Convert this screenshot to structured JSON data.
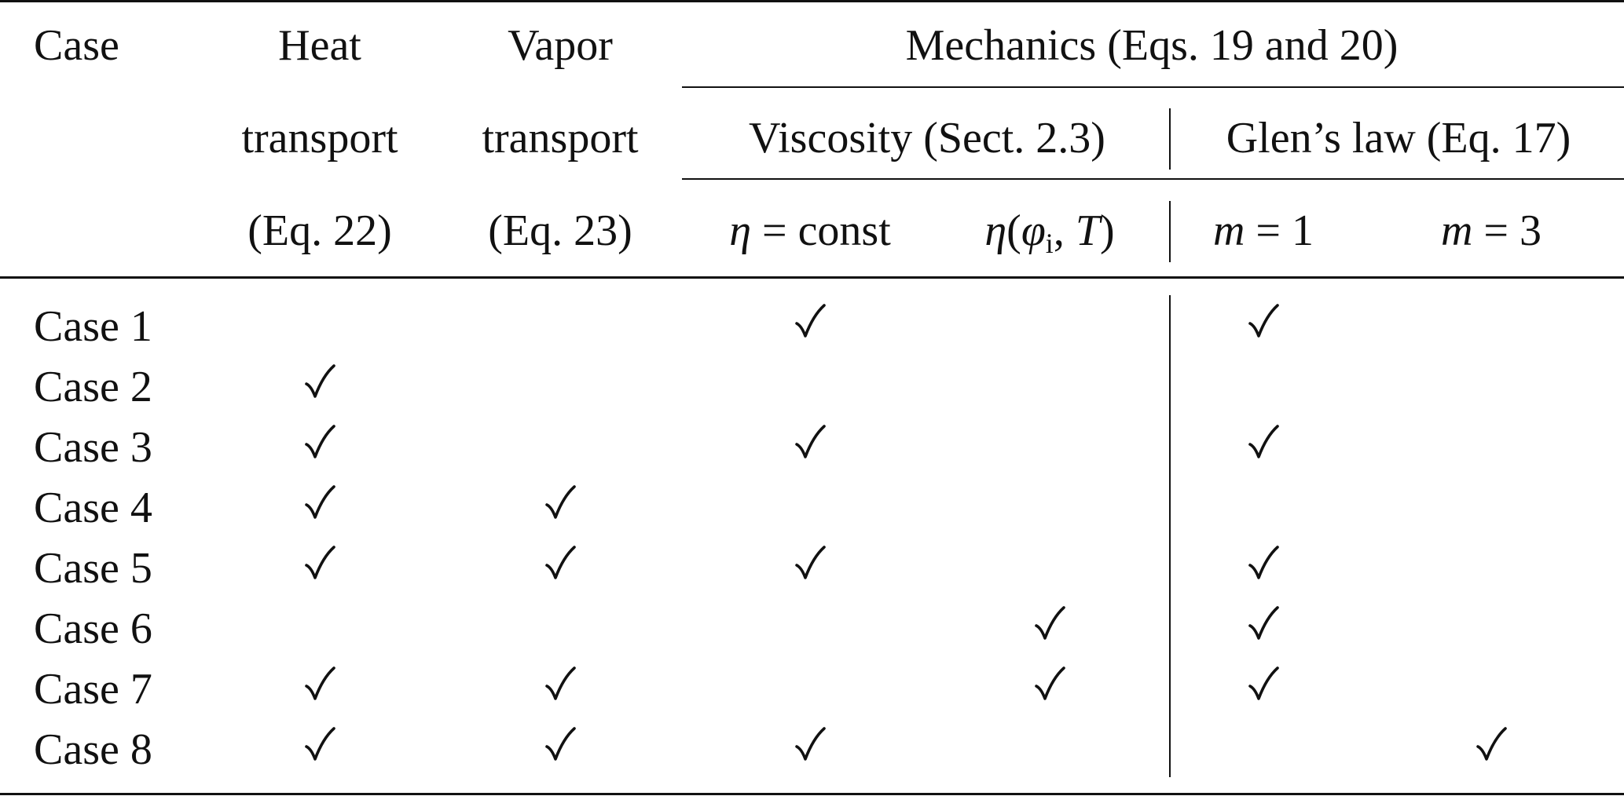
{
  "table": {
    "header": {
      "case_label": "Case",
      "heat": [
        "Heat",
        "transport",
        "(Eq. 22)"
      ],
      "vapor": [
        "Vapor",
        "transport",
        "(Eq. 23)"
      ],
      "mechanics": "Mechanics (Eqs. 19 and 20)",
      "viscosity": "Viscosity (Sect. 2.3)",
      "glen": "Glen’s law (Eq. 17)",
      "eta_const": {
        "sym": "η",
        "eq": " = ",
        "val": "const"
      },
      "eta_fn": {
        "sym": "η",
        "open": "(",
        "phi": "φ",
        "sub": "i",
        "sep": ", ",
        "T": "T",
        "close": ")"
      },
      "m1": {
        "sym": "m",
        "eq": " = ",
        "val": "1"
      },
      "m3": {
        "sym": "m",
        "eq": " = ",
        "val": "3"
      }
    },
    "columns": [
      "heat_transport",
      "vapor_transport",
      "eta_const",
      "eta_phi_T",
      "m_1",
      "m_3"
    ],
    "rows": [
      {
        "case": "Case 1",
        "checks": [
          false,
          false,
          true,
          false,
          true,
          false
        ]
      },
      {
        "case": "Case 2",
        "checks": [
          true,
          false,
          false,
          false,
          false,
          false
        ]
      },
      {
        "case": "Case 3",
        "checks": [
          true,
          false,
          true,
          false,
          true,
          false
        ]
      },
      {
        "case": "Case 4",
        "checks": [
          true,
          true,
          false,
          false,
          false,
          false
        ]
      },
      {
        "case": "Case 5",
        "checks": [
          true,
          true,
          true,
          false,
          true,
          false
        ]
      },
      {
        "case": "Case 6",
        "checks": [
          false,
          false,
          false,
          true,
          true,
          false
        ]
      },
      {
        "case": "Case 7",
        "checks": [
          true,
          true,
          false,
          true,
          true,
          false
        ]
      },
      {
        "case": "Case 8",
        "checks": [
          true,
          true,
          true,
          false,
          false,
          true
        ]
      }
    ],
    "check_mark": "✓"
  }
}
